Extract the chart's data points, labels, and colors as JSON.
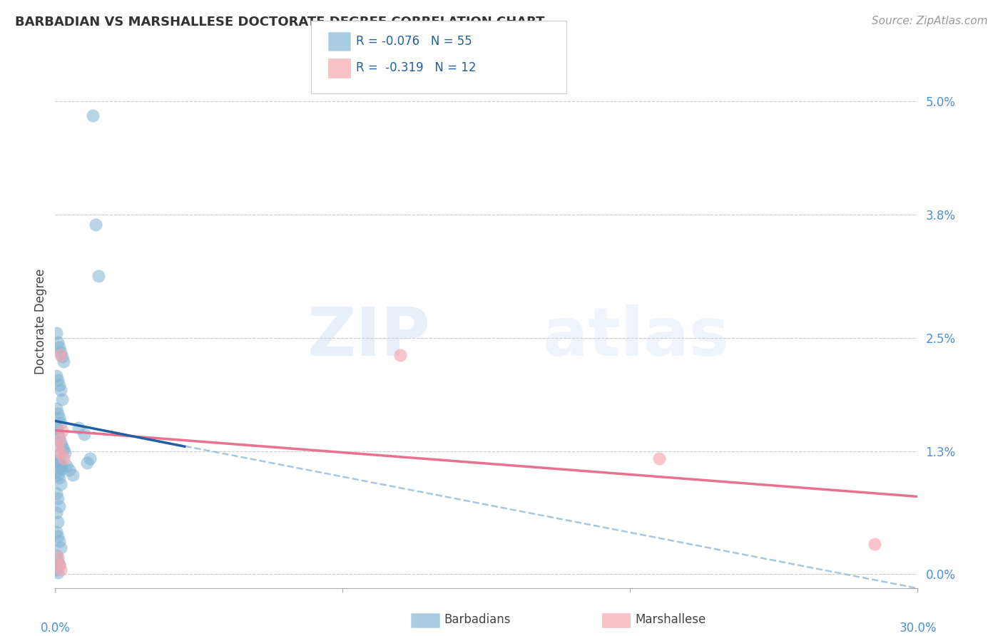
{
  "title": "BARBADIAN VS MARSHALLESE DOCTORATE DEGREE CORRELATION CHART",
  "source": "Source: ZipAtlas.com",
  "ylabel": "Doctorate Degree",
  "ytick_values": [
    0.0,
    1.3,
    2.5,
    3.8,
    5.0
  ],
  "xlim": [
    0.0,
    30.0
  ],
  "ylim": [
    -0.15,
    5.5
  ],
  "barbadian_color": "#7fb3d3",
  "marshallese_color": "#f4a7b0",
  "blue_line_color": "#2060a0",
  "pink_line_color": "#e87090",
  "dashed_line_color": "#8ab4d8",
  "watermark_zip": "ZIP",
  "watermark_atlas": "atlas",
  "blue_scatter_x": [
    1.3,
    1.4,
    1.5,
    0.05,
    0.1,
    0.15,
    0.2,
    0.25,
    0.3,
    0.05,
    0.1,
    0.15,
    0.2,
    0.25,
    0.05,
    0.1,
    0.15,
    0.2,
    0.05,
    0.1,
    0.15,
    0.2,
    0.25,
    0.3,
    0.35,
    0.05,
    0.1,
    0.15,
    0.2,
    0.25,
    0.05,
    0.1,
    0.15,
    0.2,
    0.8,
    1.0,
    0.05,
    0.1,
    0.15,
    0.05,
    0.1,
    0.05,
    0.1,
    0.15,
    0.2,
    0.05,
    0.1,
    0.15,
    0.05,
    0.1,
    1.2,
    1.1,
    0.4,
    0.5,
    0.6
  ],
  "blue_scatter_y": [
    4.85,
    3.7,
    3.15,
    2.55,
    2.45,
    2.4,
    2.35,
    2.3,
    2.25,
    2.1,
    2.05,
    2.0,
    1.95,
    1.85,
    1.75,
    1.7,
    1.65,
    1.6,
    1.55,
    1.5,
    1.45,
    1.4,
    1.35,
    1.32,
    1.28,
    1.25,
    1.2,
    1.18,
    1.15,
    1.12,
    1.08,
    1.05,
    1.02,
    0.95,
    1.55,
    1.48,
    0.85,
    0.8,
    0.72,
    0.65,
    0.55,
    0.45,
    0.4,
    0.35,
    0.28,
    0.2,
    0.15,
    0.1,
    0.05,
    0.02,
    1.22,
    1.18,
    1.15,
    1.1,
    1.05
  ],
  "pink_scatter_x": [
    0.2,
    0.25,
    0.15,
    0.1,
    0.2,
    0.3,
    12.0,
    21.0,
    28.5,
    0.1,
    0.15,
    0.2
  ],
  "pink_scatter_y": [
    2.32,
    1.52,
    1.42,
    1.35,
    1.28,
    1.22,
    2.32,
    1.22,
    0.32,
    0.18,
    0.1,
    0.05
  ],
  "blue_line_x0": 0.0,
  "blue_line_y0": 1.62,
  "blue_line_x1": 4.5,
  "blue_line_y1": 1.35,
  "dashed_line_x0": 0.0,
  "dashed_line_y0": 1.62,
  "dashed_line_x1": 30.0,
  "dashed_line_y1": -0.15,
  "pink_line_x0": 0.0,
  "pink_line_y0": 1.52,
  "pink_line_x1": 30.0,
  "pink_line_y1": 0.82
}
